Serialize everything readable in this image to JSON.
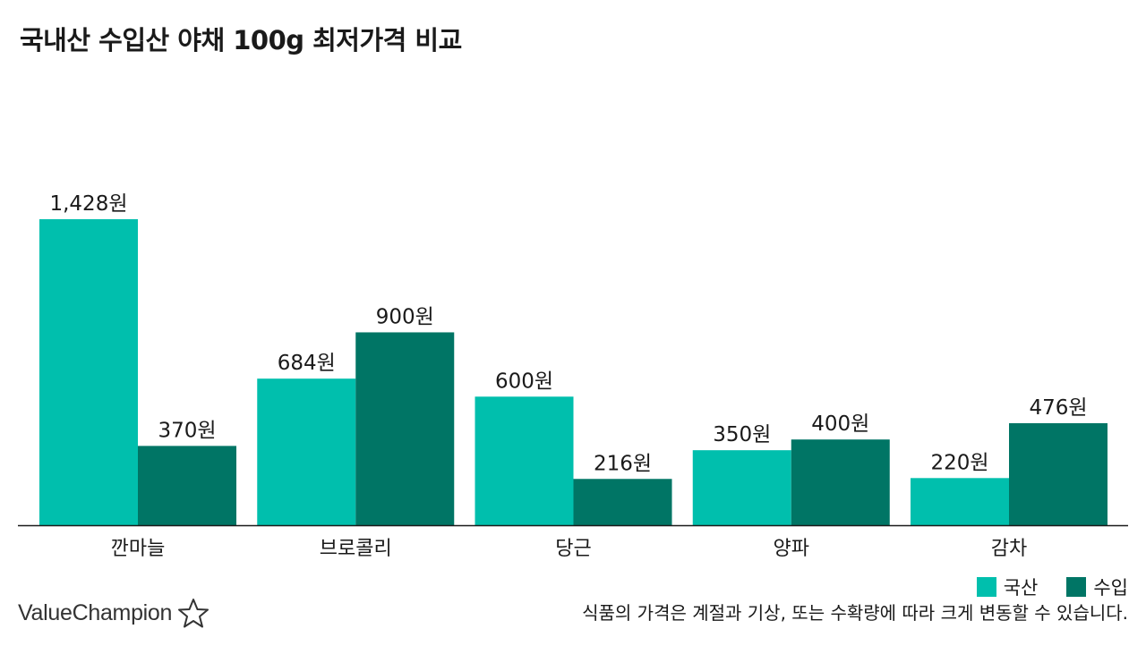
{
  "title": "국내산 수입산 야채 100g 최저가격 비교",
  "brand": {
    "name": "ValueChampion",
    "icon": "star-outline-icon"
  },
  "footnote": "식품의 가격은 계절과 기상, 또는 수확량에 따라 크게 변동할 수 있습니다.",
  "colors": {
    "domestic": "#00bfad",
    "imported": "#007565",
    "axis": "#1a1a1a"
  },
  "chart_data": {
    "type": "bar",
    "title": "국내산 수입산 야채 100g 최저가격 비교",
    "categories": [
      "깐마늘",
      "브로콜리",
      "당근",
      "양파",
      "감차"
    ],
    "series": [
      {
        "name": "국산",
        "values": [
          1428,
          684,
          600,
          350,
          220
        ],
        "labels": [
          "1,428원",
          "684원",
          "600원",
          "350원",
          "220원"
        ]
      },
      {
        "name": "수입",
        "values": [
          370,
          900,
          216,
          400,
          476
        ],
        "labels": [
          "370원",
          "900원",
          "216원",
          "400원",
          "476원"
        ]
      }
    ],
    "xlabel": "",
    "ylabel": "",
    "ylim": [
      0,
      1428
    ],
    "grid": false,
    "legend_position": "bottom-right"
  }
}
